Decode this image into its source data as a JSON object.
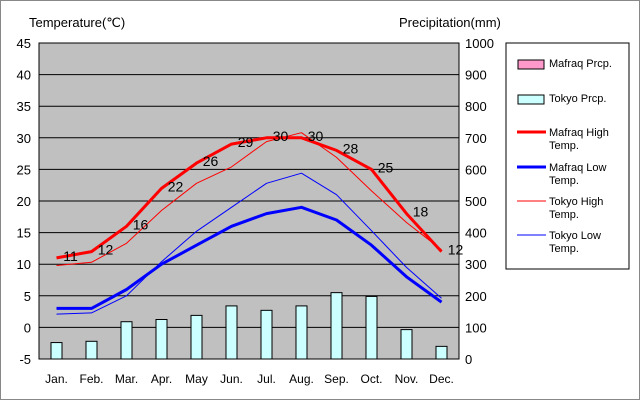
{
  "chart_data": {
    "type": "bar+line",
    "title": "",
    "left_axis_title": "Temperature(℃)",
    "right_axis_title": "Precipitation(mm)",
    "categories": [
      "Jan.",
      "Feb.",
      "Mar.",
      "Apr.",
      "May",
      "Jun.",
      "Jul.",
      "Aug.",
      "Sep.",
      "Oct.",
      "Nov.",
      "Dec."
    ],
    "left_ticks": [
      "-5",
      "0",
      "5",
      "10",
      "15",
      "20",
      "25",
      "30",
      "35",
      "40",
      "45"
    ],
    "right_ticks": [
      "0",
      "100",
      "200",
      "300",
      "400",
      "500",
      "600",
      "700",
      "800",
      "900",
      "1000"
    ],
    "ylim_left": [
      -5,
      45
    ],
    "ylim_right": [
      0,
      1000
    ],
    "grid": true,
    "legend_position": "right",
    "bar_series": [
      {
        "name": "Mafraq Prcp.",
        "values": [
          0,
          0,
          0,
          0,
          0,
          0,
          0,
          0,
          0,
          0,
          0,
          0
        ],
        "fill": "#ff99cc"
      },
      {
        "name": "Tokyo Prcp.",
        "values": [
          52,
          56,
          118,
          125,
          138,
          168,
          154,
          168,
          210,
          198,
          93,
          40
        ],
        "fill": "#ccffff"
      }
    ],
    "line_series": [
      {
        "name": "Mafraq High Temp.",
        "values": [
          11,
          12,
          16,
          22,
          26,
          29,
          30,
          30,
          28,
          25,
          18,
          12
        ],
        "color": "#ff0000",
        "width": 3
      },
      {
        "name": "Mafraq Low Temp.",
        "values": [
          3,
          3,
          6,
          10,
          13,
          16,
          18,
          19,
          17,
          13,
          8,
          4
        ],
        "color": "#0000ff",
        "width": 3
      },
      {
        "name": "Tokyo High Temp.",
        "values": [
          9.8,
          10.3,
          13.3,
          18.5,
          22.8,
          25.4,
          29.4,
          30.8,
          26.9,
          21.6,
          16.6,
          12.3
        ],
        "color": "#ff0000",
        "width": 1
      },
      {
        "name": "Tokyo Low Temp.",
        "values": [
          2.1,
          2.3,
          5.0,
          10.4,
          15.2,
          19.0,
          22.8,
          24.4,
          21.0,
          15.3,
          9.5,
          4.6
        ],
        "color": "#0000ff",
        "width": 1
      }
    ],
    "data_labels": [
      "11",
      "12",
      "16",
      "22",
      "26",
      "29",
      "30",
      "30",
      "28",
      "25",
      "18",
      "12"
    ]
  },
  "legend": {
    "items": [
      {
        "kind": "bar",
        "fill": "#ff99cc",
        "lines": [
          "Mafraq Prcp."
        ]
      },
      {
        "kind": "bar",
        "fill": "#ccffff",
        "lines": [
          "Tokyo Prcp."
        ]
      },
      {
        "kind": "line",
        "color": "#ff0000",
        "width": 3,
        "lines": [
          "Mafraq High",
          "Temp."
        ]
      },
      {
        "kind": "line",
        "color": "#0000ff",
        "width": 3,
        "lines": [
          "Mafraq Low",
          "Temp."
        ]
      },
      {
        "kind": "line",
        "color": "#ff0000",
        "width": 1,
        "lines": [
          "Tokyo High",
          "Temp."
        ]
      },
      {
        "kind": "line",
        "color": "#0000ff",
        "width": 1,
        "lines": [
          "Tokyo Low",
          "Temp."
        ]
      }
    ]
  },
  "colors": {
    "plot_bg": "#c0c0c0",
    "grid": "#000000",
    "bar_stroke": "#000000"
  }
}
